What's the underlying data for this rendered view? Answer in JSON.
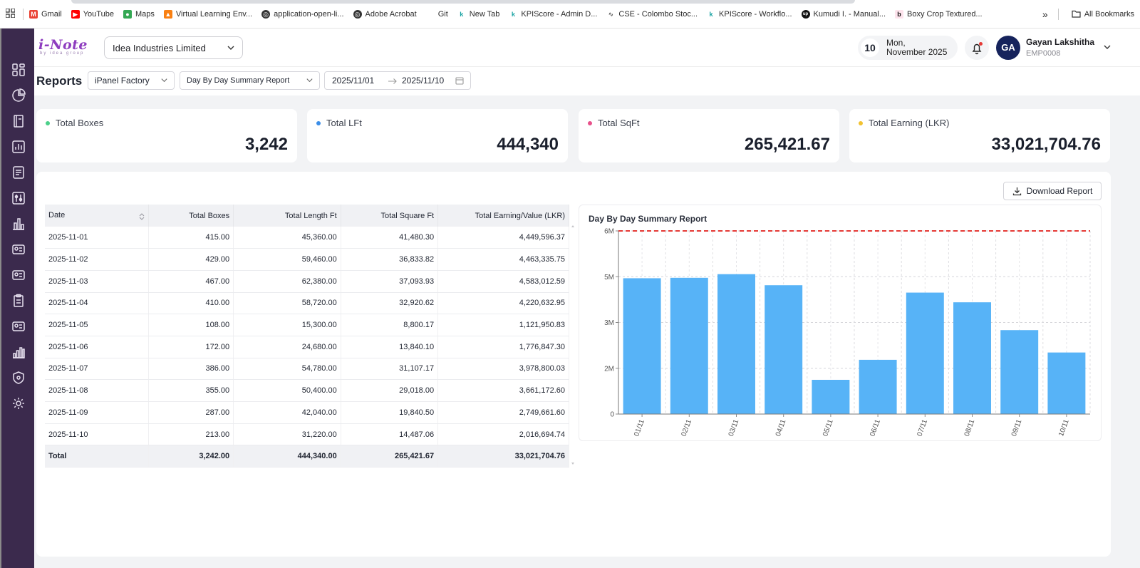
{
  "bookmarks": {
    "items": [
      {
        "label": "Gmail",
        "icon": "gmail-icon",
        "color": "#ea4335"
      },
      {
        "label": "YouTube",
        "icon": "youtube-icon",
        "color": "#ff0000"
      },
      {
        "label": "Maps",
        "icon": "maps-icon",
        "color": "#34a853"
      },
      {
        "label": "Virtual Learning Env...",
        "icon": "moodle-icon",
        "color": "#f98012"
      },
      {
        "label": "application-open-li...",
        "icon": "globe-icon",
        "color": "#333333"
      },
      {
        "label": "Adobe Acrobat",
        "icon": "globe-icon",
        "color": "#333333"
      },
      {
        "label": "Git",
        "icon": "git-icon",
        "color": "#ffffff"
      },
      {
        "label": "New Tab",
        "icon": "kpi-icon",
        "color": "#1aa3a3"
      },
      {
        "label": "KPIScore - Admin D...",
        "icon": "kpi-icon",
        "color": "#1aa3a3"
      },
      {
        "label": "CSE - Colombo Stoc...",
        "icon": "cse-icon",
        "color": "#555555"
      },
      {
        "label": "KPIScore - Workflo...",
        "icon": "kpi-icon",
        "color": "#1aa3a3"
      },
      {
        "label": "Kumudi I. - Manual...",
        "icon": "up-icon",
        "color": "#111111"
      },
      {
        "label": "Boxy Crop Textured...",
        "icon": "b-icon",
        "color": "#e91e63"
      }
    ],
    "more": "»",
    "all_bookmarks": "All Bookmarks"
  },
  "header": {
    "logo_text": "i-Note",
    "logo_sub": "by idea group",
    "company": "Idea Industries Limited",
    "date_day": "10",
    "date_weekday": "Mon,",
    "date_month_year": "November 2025",
    "user_initials": "GA",
    "user_name": "Gayan Lakshitha",
    "user_id": "EMP0008"
  },
  "toolbar": {
    "title": "Reports",
    "factory": "iPanel Factory",
    "report_type": "Day By Day Summary Report",
    "date_from": "2025/11/01",
    "date_to": "2025/11/10"
  },
  "stats": [
    {
      "label": "Total Boxes",
      "value": "3,242",
      "color": "#4cd08a"
    },
    {
      "label": "Total LFt",
      "value": "444,340",
      "color": "#3b8ee8"
    },
    {
      "label": "Total SqFt",
      "value": "265,421.67",
      "color": "#e8508a"
    },
    {
      "label": "Total Earning (LKR)",
      "value": "33,021,704.76",
      "color": "#f2c230"
    }
  ],
  "download_label": "Download Report",
  "table": {
    "headers": [
      "Date",
      "Total Boxes",
      "Total Length Ft",
      "Total Square Ft",
      "Total Earning/Value (LKR)"
    ],
    "rows": [
      [
        "2025-11-01",
        "415.00",
        "45,360.00",
        "41,480.30",
        "4,449,596.37"
      ],
      [
        "2025-11-02",
        "429.00",
        "59,460.00",
        "36,833.82",
        "4,463,335.75"
      ],
      [
        "2025-11-03",
        "467.00",
        "62,380.00",
        "37,093.93",
        "4,583,012.59"
      ],
      [
        "2025-11-04",
        "410.00",
        "58,720.00",
        "32,920.62",
        "4,220,632.95"
      ],
      [
        "2025-11-05",
        "108.00",
        "15,300.00",
        "8,800.17",
        "1,121,950.83"
      ],
      [
        "2025-11-06",
        "172.00",
        "24,680.00",
        "13,840.10",
        "1,776,847.30"
      ],
      [
        "2025-11-07",
        "386.00",
        "54,780.00",
        "31,107.17",
        "3,978,800.03"
      ],
      [
        "2025-11-08",
        "355.00",
        "50,400.00",
        "29,018.00",
        "3,661,172.60"
      ],
      [
        "2025-11-09",
        "287.00",
        "42,040.00",
        "19,840.50",
        "2,749,661.60"
      ],
      [
        "2025-11-10",
        "213.00",
        "31,220.00",
        "14,487.06",
        "2,016,694.74"
      ]
    ],
    "total": [
      "Total",
      "3,242.00",
      "444,340.00",
      "265,421.67",
      "33,021,704.76"
    ]
  },
  "chart_data": {
    "type": "bar",
    "title": "Day By Day Summary Report",
    "categories": [
      "01/11",
      "02/11",
      "03/11",
      "04/11",
      "05/11",
      "06/11",
      "07/11",
      "08/11",
      "09/11",
      "10/11"
    ],
    "values": [
      4449596.37,
      4463335.75,
      4583012.59,
      4220632.95,
      1121950.83,
      1776847.3,
      3978800.03,
      3661172.6,
      2749661.6,
      2016694.74
    ],
    "yticks": [
      0,
      1500000,
      3000000,
      4500000,
      6000000
    ],
    "ytick_labels": [
      "0",
      "2M",
      "3M",
      "5M",
      "6M"
    ],
    "ylim": [
      0,
      6000000
    ],
    "reference_line": 6000000,
    "bar_color": "#57b3f7",
    "reference_color": "#e53935",
    "xlabel": "",
    "ylabel": ""
  }
}
